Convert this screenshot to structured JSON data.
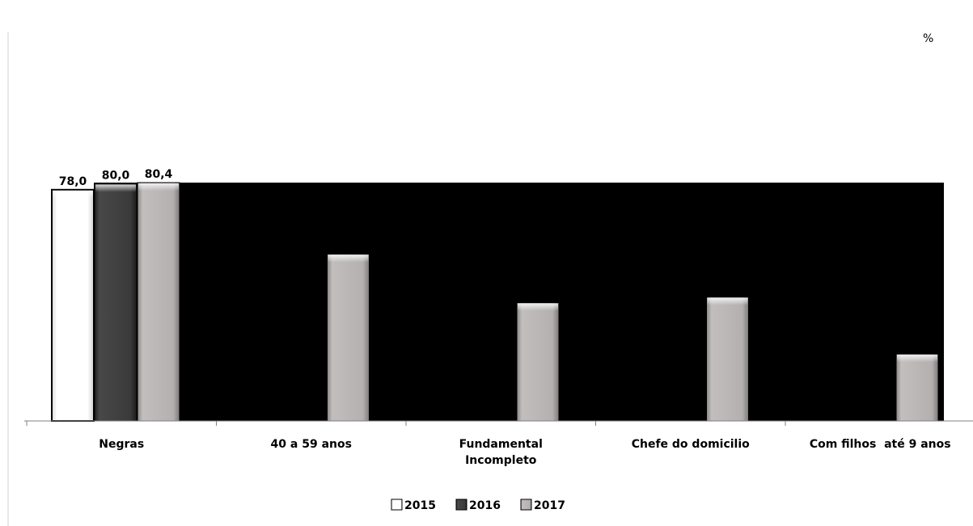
{
  "unit_label": "%",
  "chart_data": {
    "type": "bar",
    "categories": [
      "Negras",
      "40 a 59 anos",
      "Fundamental Incompleto",
      "Chefe do domicilio",
      "Com filhos  até 9 anos"
    ],
    "series": [
      {
        "name": "2015",
        "values": [
          78.0,
          null,
          null,
          null,
          null
        ]
      },
      {
        "name": "2016",
        "values": [
          80.0,
          null,
          null,
          null,
          null
        ]
      },
      {
        "name": "2017",
        "values": [
          80.4,
          56.3,
          39.9,
          41.8,
          22.6
        ]
      }
    ],
    "data_labels": [
      {
        "series": "2015",
        "category": "Negras",
        "text": "78,0"
      },
      {
        "series": "2016",
        "category": "Negras",
        "text": "80,0"
      },
      {
        "series": "2017",
        "category": "Negras",
        "text": "80,4"
      }
    ],
    "ylim": [
      0,
      80.4
    ],
    "grid": false,
    "legend": {
      "position": "bottom",
      "entries": [
        "2015",
        "2016",
        "2017"
      ]
    },
    "colors": {
      "2015": "#ffffff",
      "2016": "#3a3a3a",
      "2017": "#b4b0b0",
      "plot_background": "#000000"
    }
  }
}
